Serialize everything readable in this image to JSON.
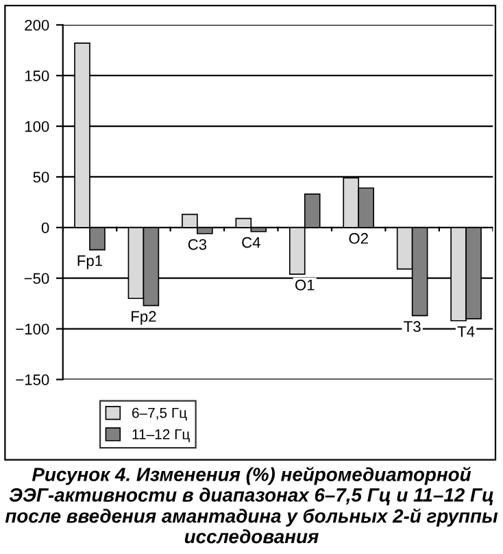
{
  "chart_data": {
    "type": "bar",
    "title": "Рисунок 4. Изменения (%) нейромедиаторной ЭЭГ-активности в диапазонах 6–7,5 Гц и 11–12 Гц после введения амантадина у больных 2-й группы исследования",
    "categories": [
      "Fp1",
      "Fp2",
      "C3",
      "C4",
      "O1",
      "O2",
      "T3",
      "T4"
    ],
    "series": [
      {
        "name": "6–7,5 Гц",
        "color": "#d9d9d9",
        "values": [
          182,
          -70,
          13,
          9,
          -46,
          49,
          -41,
          -92
        ]
      },
      {
        "name": "11–12 Гц",
        "color": "#808080",
        "values": [
          -22,
          -77,
          -6,
          -4,
          33,
          39,
          -87,
          -90
        ]
      }
    ],
    "ylim": [
      -150,
      200
    ],
    "yticks": [
      {
        "value": -150,
        "label": "−150"
      },
      {
        "value": -100,
        "label": "−100"
      },
      {
        "value": -50,
        "label": "−50"
      },
      0,
      50,
      100,
      150,
      200
    ],
    "grid": "y",
    "legend": "bottom left"
  }
}
